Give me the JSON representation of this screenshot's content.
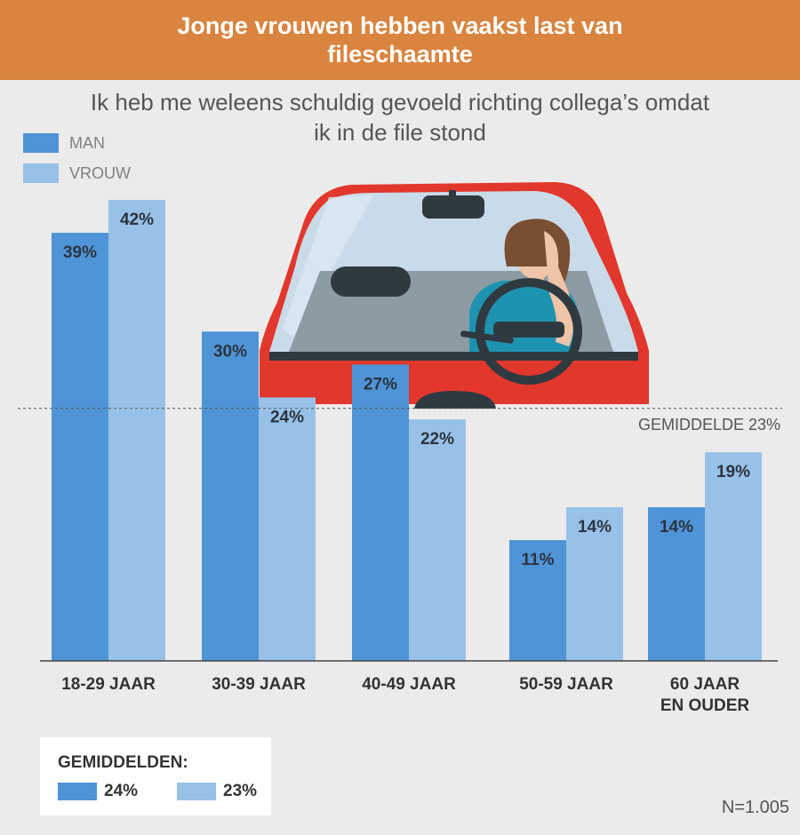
{
  "header": {
    "title": "Jonge vrouwen hebben vaakst last van fileschaamte"
  },
  "colors": {
    "header": "#d9843f",
    "man": "#4f94d6",
    "vrouw": "#98c1e8",
    "car": "#e2372c"
  },
  "chart_data": {
    "type": "bar",
    "title": "Jonge vrouwen hebben vaakst last van fileschaamte",
    "subtitle": "Ik heb me weleens schuldig gevoeld richting collega’s omdat ik in de file stond",
    "categories": [
      "18-29 JAAR",
      "30-39 JAAR",
      "40-49 JAAR",
      "50-59 JAAR",
      "60 JAAR EN OUDER"
    ],
    "category_lines": [
      [
        "18-29 JAAR"
      ],
      [
        "30-39 JAAR"
      ],
      [
        "40-49 JAAR"
      ],
      [
        "50-59 JAAR"
      ],
      [
        "60 JAAR",
        "EN OUDER"
      ]
    ],
    "series": [
      {
        "name": "MAN",
        "values": [
          39,
          30,
          27,
          11,
          14
        ],
        "labels": [
          "39%",
          "30%",
          "27%",
          "11%",
          "14%"
        ]
      },
      {
        "name": "VROUW",
        "values": [
          42,
          24,
          22,
          14,
          19
        ],
        "labels": [
          "42%",
          "24%",
          "22%",
          "14%",
          "19%"
        ]
      }
    ],
    "reference_line": {
      "value": 23,
      "label": "GEMIDDELDE 23%"
    },
    "ylim": [
      0,
      42
    ],
    "legend_position": "top-left",
    "grid": false
  },
  "averages": {
    "title": "GEMIDDELDEN:",
    "man": "24%",
    "vrouw": "23%"
  },
  "footer": {
    "sample": "N=1.005"
  }
}
